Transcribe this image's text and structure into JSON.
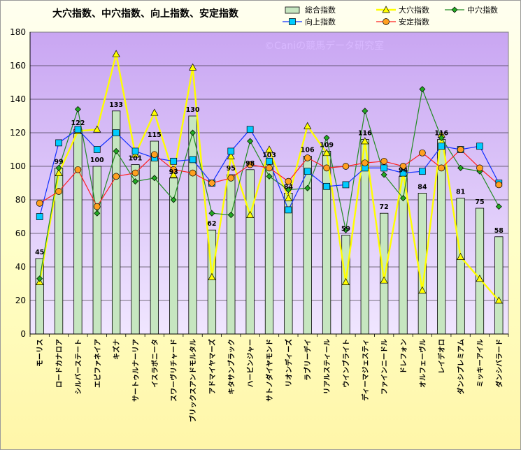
{
  "chart_data": {
    "type": "bar",
    "title": "大穴指数、中穴指数、向上指数、安定指数",
    "watermark": "©Caniの競馬データ研究室",
    "ylim": [
      0,
      180
    ],
    "yticks": [
      0,
      20,
      40,
      60,
      80,
      100,
      120,
      140,
      160,
      180
    ],
    "legend_position": "top-right",
    "grid": true,
    "colors": {
      "plot_bg_top": "#c9a6f2",
      "plot_bg_bottom": "#f0e6ff",
      "bar_fill": "#c6e6c0",
      "bar_stroke": "#000000",
      "ana_line": "#ffff00",
      "ana_marker": "#ffff00",
      "chu_line": "#228b22",
      "chu_marker": "#22aa22",
      "kojo_line": "#1030ff",
      "kojo_marker": "#00ccff",
      "antei_line": "#ff2020",
      "antei_marker": "#ffa020"
    },
    "categories": [
      "モーリス",
      "ロードカナロア",
      "シルバーステート",
      "エピファネイア",
      "キズナ",
      "サートゥルナーリア",
      "イスラボニータ",
      "スワーヴリチャード",
      "ブリックスアンドモルタル",
      "アドマイヤマーズ",
      "キタサンブラック",
      "ハービンジャー",
      "サトノダイヤモンド",
      "リオンディーズ",
      "ラブリーデイ",
      "リアルスティール",
      "ウインブライト",
      "ディーマジェスティ",
      "ファインニードル",
      "ドレフォン",
      "オルフェーヴル",
      "レイデオロ",
      "ダンシプレミアム",
      "ミッキーアイル",
      "ダンシバラード"
    ],
    "series": [
      {
        "name": "総合指数",
        "kind": "bar",
        "values": [
          45,
          99,
          122,
          100,
          133,
          101,
          115,
          93,
          130,
          62,
          95,
          98,
          103,
          84,
          106,
          109,
          59,
          116,
          72,
          94,
          84,
          116,
          81,
          75,
          58
        ]
      },
      {
        "name": "大穴指数",
        "kind": "line",
        "marker": "triangle",
        "values": [
          31,
          96,
          121,
          122,
          167,
          107,
          132,
          95,
          159,
          34,
          106,
          71,
          110,
          81,
          124,
          108,
          31,
          115,
          32,
          96,
          26,
          119,
          46,
          33,
          20
        ]
      },
      {
        "name": "中穴指数",
        "kind": "line",
        "marker": "diamond",
        "values": [
          33,
          99,
          134,
          72,
          109,
          91,
          93,
          80,
          120,
          72,
          71,
          115,
          94,
          86,
          87,
          117,
          62,
          133,
          95,
          81,
          146,
          117,
          99,
          97,
          76
        ]
      },
      {
        "name": "向上指数",
        "kind": "line",
        "marker": "square",
        "values": [
          70,
          114,
          122,
          110,
          120,
          109,
          105,
          103,
          104,
          90,
          109,
          122,
          103,
          74,
          97,
          88,
          89,
          99,
          99,
          96,
          97,
          112,
          110,
          112,
          90
        ]
      },
      {
        "name": "安定指数",
        "kind": "line",
        "marker": "circle",
        "values": [
          78,
          85,
          98,
          76,
          94,
          96,
          107,
          98,
          96,
          90,
          93,
          101,
          99,
          91,
          105,
          99,
          100,
          102,
          103,
          100,
          108,
          99,
          110,
          99,
          89
        ]
      }
    ]
  }
}
